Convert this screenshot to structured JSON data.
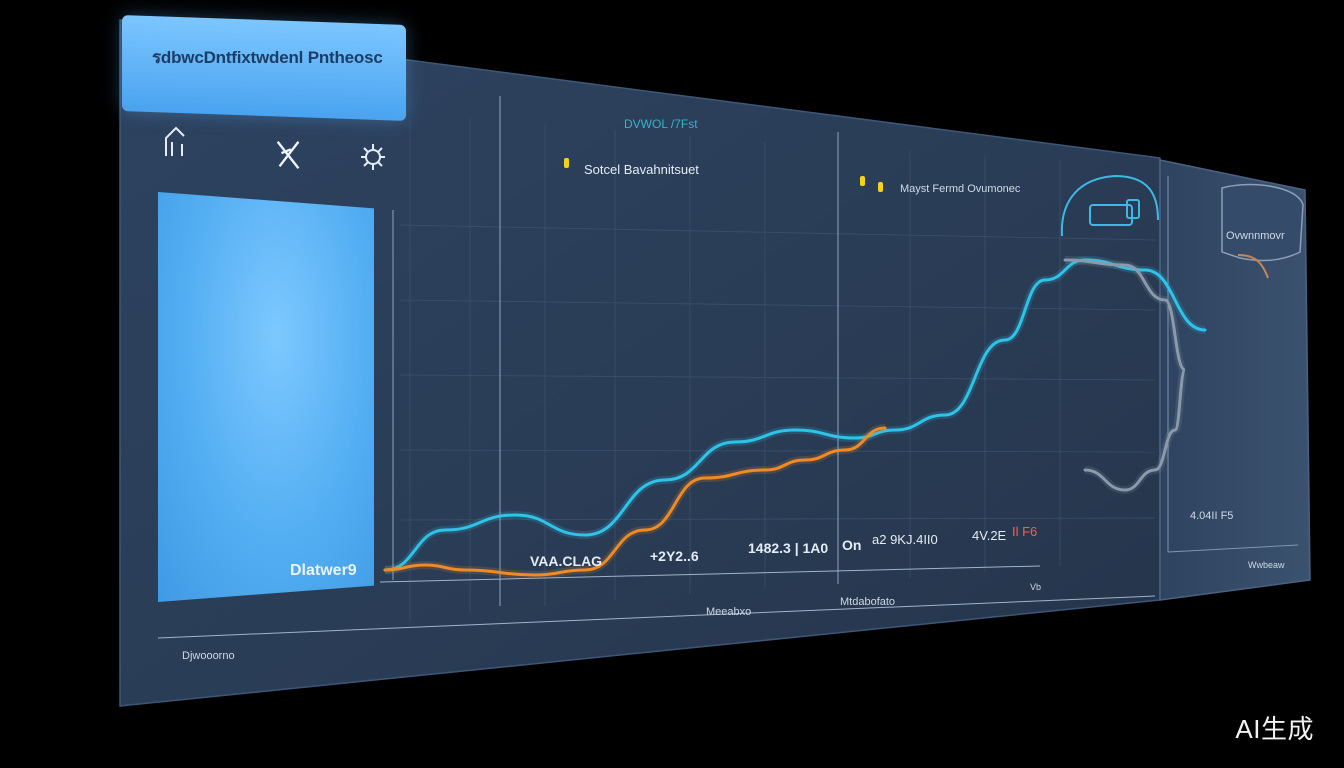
{
  "window": {
    "title": "รdbwcDntfixtwdenl Pntheosc"
  },
  "toolbar": {
    "icons": [
      "chart-icon",
      "scissors-icon",
      "settings-icon"
    ]
  },
  "side_card": {
    "label": "Dlatwer9"
  },
  "footer": {
    "label": "Djwooorno"
  },
  "chart": {
    "top_caption": "DVWOL /7Fst",
    "legend_left": "Sotcel Bavahnitsuet",
    "legend_right": "Mayst Fermd Ovumonec",
    "right_badge": "Ovwnnmovr",
    "axis_label_center": "Meeabxo",
    "axis_label_right": "Mtdabofato",
    "axis_corner": "Vb",
    "value_labels": [
      "VAA.CLAG",
      "+2Y2..6",
      "1482.3 | 1A0",
      "On",
      "a2 9KJ.4II0",
      "4V.2E",
      "Il F6"
    ],
    "value_right": "4.04II F5",
    "mini_axis": "Wwbeaw"
  },
  "chart_data": {
    "type": "line",
    "series": [
      {
        "color": "#2ec3e8",
        "points": [
          [
            0,
            0
          ],
          [
            60,
            40
          ],
          [
            130,
            55
          ],
          [
            200,
            35
          ],
          [
            280,
            90
          ],
          [
            350,
            128
          ],
          [
            410,
            140
          ],
          [
            470,
            132
          ],
          [
            510,
            140
          ],
          [
            560,
            155
          ],
          [
            620,
            230
          ],
          [
            660,
            290
          ],
          [
            700,
            310
          ],
          [
            760,
            300
          ],
          [
            820,
            240
          ]
        ]
      },
      {
        "color": "#f08a24",
        "points": [
          [
            0,
            0
          ],
          [
            40,
            5
          ],
          [
            80,
            0
          ],
          [
            150,
            -5
          ],
          [
            200,
            0
          ],
          [
            260,
            40
          ],
          [
            320,
            92
          ],
          [
            380,
            100
          ],
          [
            420,
            110
          ],
          [
            460,
            120
          ],
          [
            500,
            142
          ]
        ]
      },
      {
        "color": "#8a9aab",
        "points": [
          [
            680,
            310
          ],
          [
            740,
            305
          ],
          [
            780,
            270
          ],
          [
            800,
            200
          ],
          [
            790,
            140
          ],
          [
            770,
            100
          ],
          [
            740,
            80
          ],
          [
            700,
            100
          ]
        ]
      }
    ]
  },
  "colors": {
    "panel_bg": "#2a3d56",
    "panel_edge": "#3a5476",
    "accent_blue": "#4aa3ef",
    "cyan_line": "#2ec3e8",
    "orange_line": "#f08a24",
    "grey_line": "#8a9aab",
    "legend_yellow": "#f4d21a"
  },
  "watermark": "AI生成"
}
